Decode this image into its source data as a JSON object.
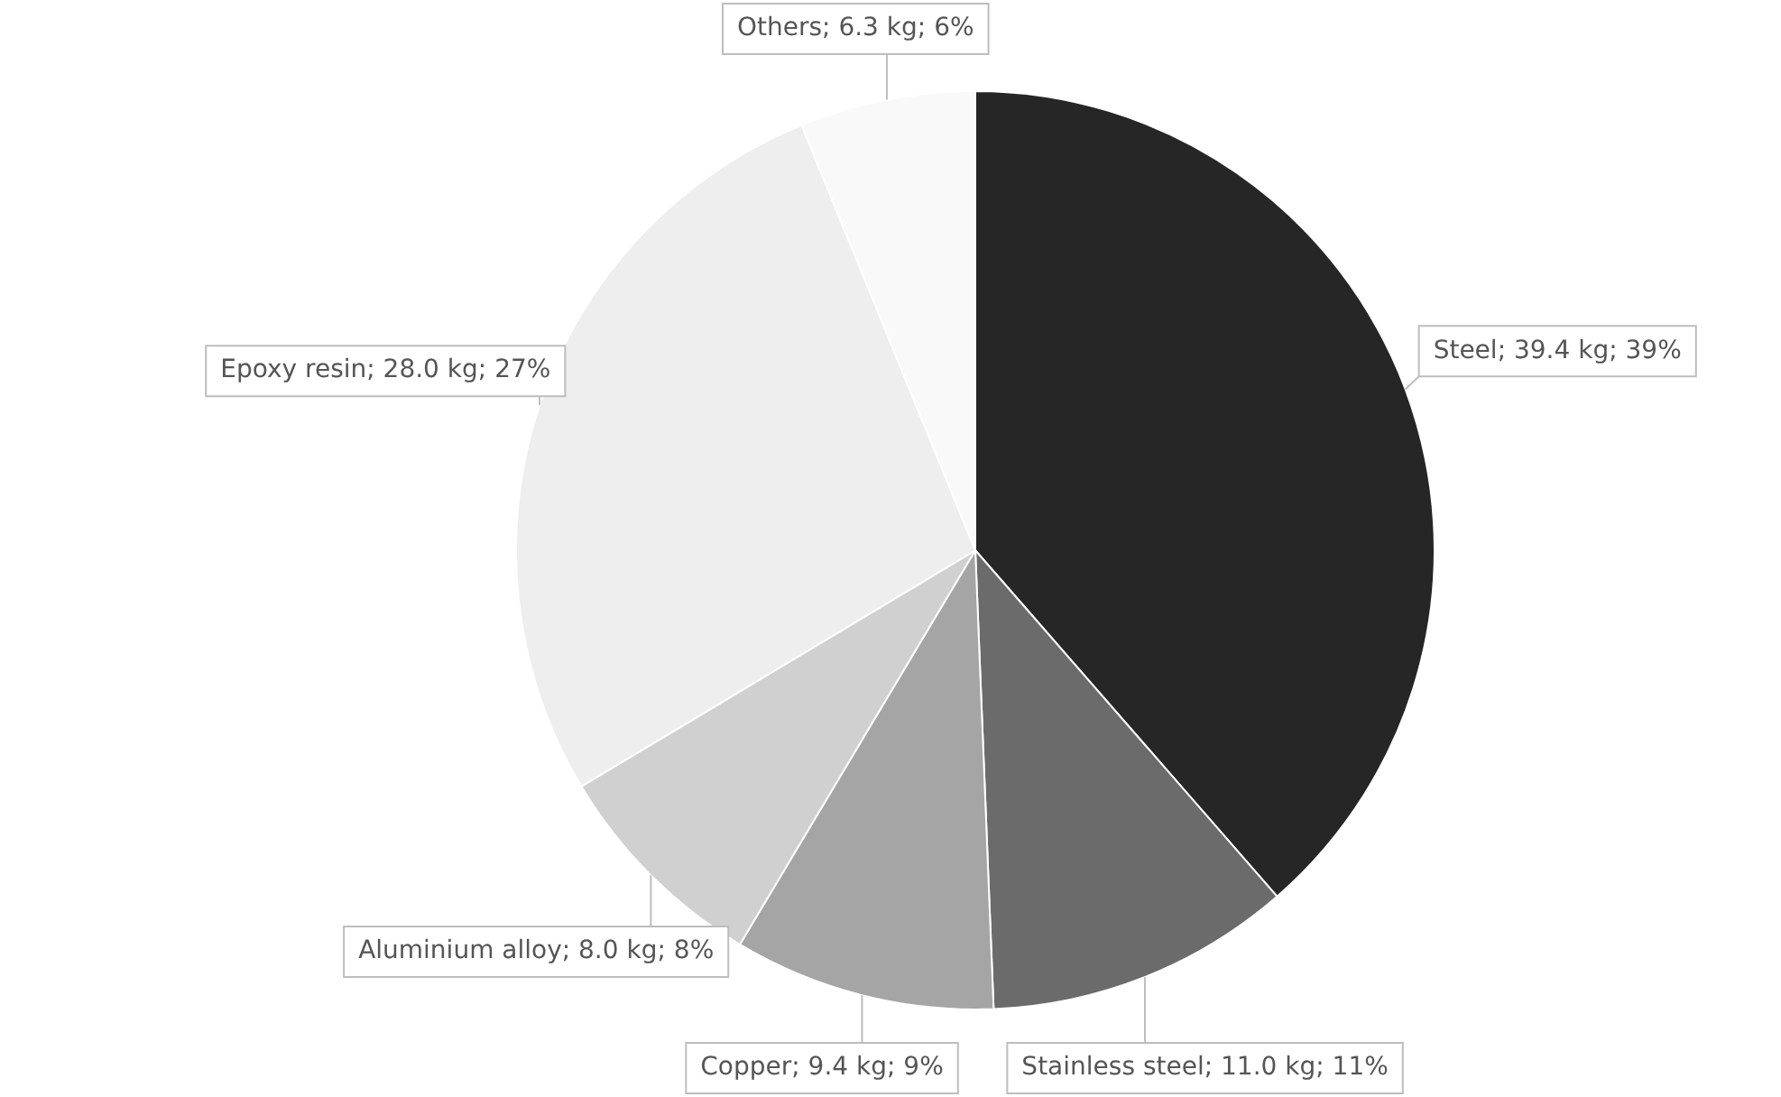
{
  "chart_data": {
    "type": "pie",
    "categories": [
      "Steel",
      "Stainless steel",
      "Copper",
      "Aluminium alloy",
      "Epoxy resin",
      "Others"
    ],
    "values": [
      39.4,
      11.0,
      9.4,
      8.0,
      28.0,
      6.3
    ],
    "value_labels": [
      "39.4 kg; 39%",
      "11.0 kg; 11%",
      "9.4 kg; 9%",
      "8.0 kg; 8%",
      "28.0 kg; 27%",
      "6.3 kg; 6%"
    ],
    "colors": [
      "#262626",
      "#6b6b6b",
      "#a5a5a5",
      "#d0d0d0",
      "#eeeeee",
      "#f9f9f9"
    ],
    "legend": false
  }
}
